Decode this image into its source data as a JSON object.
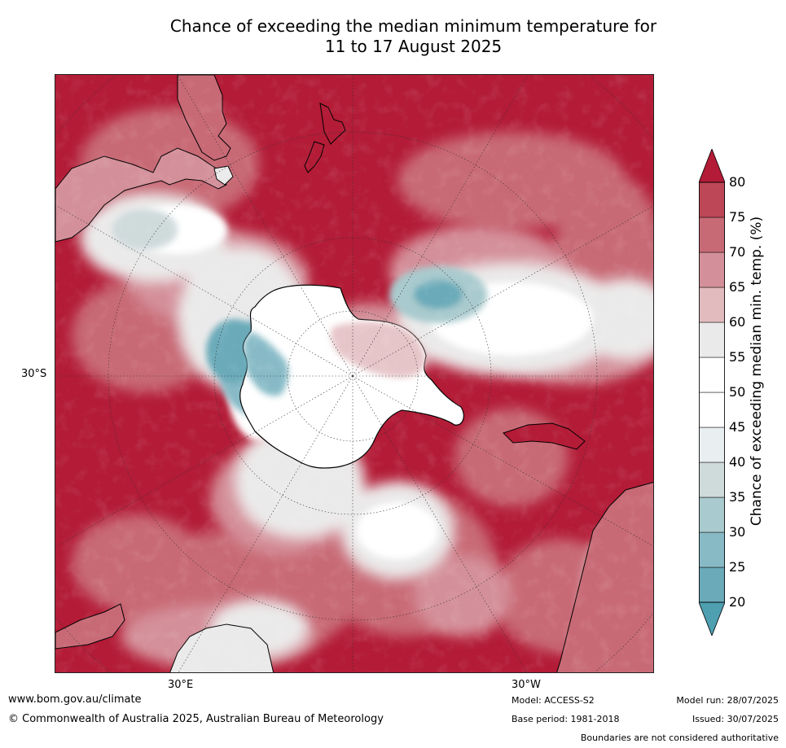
{
  "title": {
    "line1": "Chance of exceeding the median minimum temperature for",
    "line2": "11 to 17 August 2025"
  },
  "map": {
    "projection": "south-polar stereographic",
    "lat_label": "30°S",
    "lon_labels": [
      "30°E",
      "30°W"
    ],
    "regions": [
      {
        "name": "Antarctica",
        "description": "ice sheet, mostly 45-60%"
      },
      {
        "name": "Southern Ocean ring",
        "description": "mixed 40-70%"
      },
      {
        "name": "mid-latitude oceans",
        "description": "mostly above 80%"
      },
      {
        "name": "Australia",
        "description": "mostly 60-75%"
      },
      {
        "name": "South America",
        "description": "mostly above 70%"
      },
      {
        "name": "Africa",
        "description": "mixed 45-70%"
      },
      {
        "name": "New Zealand",
        "description": "above 80%"
      }
    ]
  },
  "colorbar": {
    "title": "Chance of exceeding median min. temp. (%)",
    "ticks": [
      "20",
      "25",
      "30",
      "35",
      "40",
      "45",
      "50",
      "55",
      "60",
      "65",
      "70",
      "75",
      "80"
    ],
    "colors": [
      "#4e9fb0",
      "#6aaab9",
      "#88bac6",
      "#a9cace",
      "#cfdadb",
      "#e9eef0",
      "#ffffff",
      "#ffffff",
      "#ebeaea",
      "#e2bbbf",
      "#d4909a",
      "#c86a76",
      "#be4757",
      "#b31b36"
    ],
    "below_color": "#4e9fb0",
    "above_color": "#b31b36"
  },
  "footer": {
    "website": "www.bom.gov.au/climate",
    "copyright": "© Commonwealth of Australia 2025, Australian Bureau of Meteorology",
    "model": "Model: ACCESS-S2",
    "base_period": "Base period: 1981-2018",
    "model_run": "Model run: 28/07/2025",
    "issued": "Issued: 30/07/2025",
    "disclaimer": "Boundaries are not considered authoritative"
  }
}
